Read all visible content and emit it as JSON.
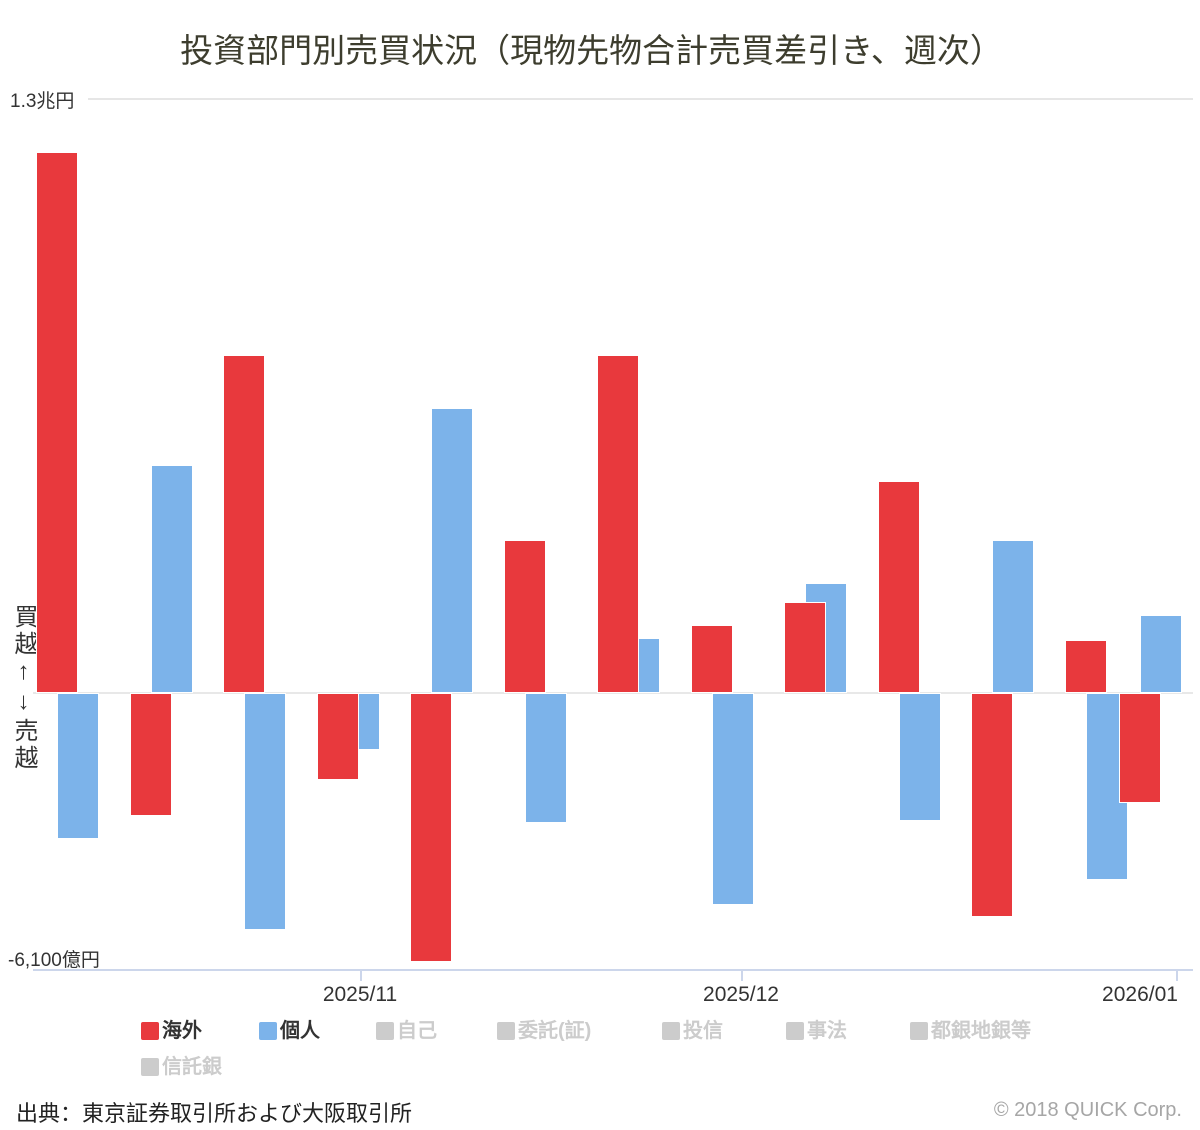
{
  "title": "投資部門別売買状況（現物先物合計売買差引き、週次）",
  "y_axis": {
    "top_label": "1.3兆円",
    "bottom_label": "-6,100億円",
    "direction_label": "買越↑↓売越"
  },
  "x_axis": {
    "labels": [
      "2025/11",
      "2025/12",
      "2026/01"
    ]
  },
  "legend": {
    "items": [
      {
        "label": "海外",
        "color": "#e8393d",
        "active": true
      },
      {
        "label": "個人",
        "color": "#7cb3ea",
        "active": true
      },
      {
        "label": "自己",
        "color": "#cccccc",
        "active": false
      },
      {
        "label": "委託(証)",
        "color": "#cccccc",
        "active": false
      },
      {
        "label": "投信",
        "color": "#cccccc",
        "active": false
      },
      {
        "label": "事法",
        "color": "#cccccc",
        "active": false
      },
      {
        "label": "都銀地銀等",
        "color": "#cccccc",
        "active": false
      },
      {
        "label": "信託銀",
        "color": "#cccccc",
        "active": false
      }
    ]
  },
  "source": "出典：東京証券取引所および大阪取引所",
  "copyright": "© 2018 QUICK Corp.",
  "chart_data": {
    "type": "bar",
    "title": "投資部門別売買状況（現物先物合計売買差引き、週次）",
    "unit": "億円",
    "frequency": "weekly",
    "n_points": 13,
    "x_tick_labels": [
      "2025/11",
      "2025/12",
      "2026/01"
    ],
    "ylim": [
      -6100,
      13000
    ],
    "ymax_label": "1.3兆円",
    "ymin_label": "-6,100億円",
    "grid": "horizontal-minimal",
    "legend_position": "bottom",
    "series": [
      {
        "name": "海外",
        "color": "#e8393d",
        "values": [
          11850,
          -2700,
          7400,
          -1900,
          -5900,
          3350,
          7400,
          1500,
          2000,
          4650,
          -4900,
          1150,
          -2400
        ]
      },
      {
        "name": "個人",
        "color": "#7cb3ea",
        "values": [
          -3200,
          5000,
          -5200,
          -1250,
          6250,
          -2850,
          1200,
          -4650,
          2400,
          -2800,
          3350,
          -4100,
          1700
        ]
      }
    ],
    "hidden_series": [
      "自己",
      "委託(証)",
      "投信",
      "事法",
      "都銀地銀等",
      "信託銀"
    ]
  }
}
